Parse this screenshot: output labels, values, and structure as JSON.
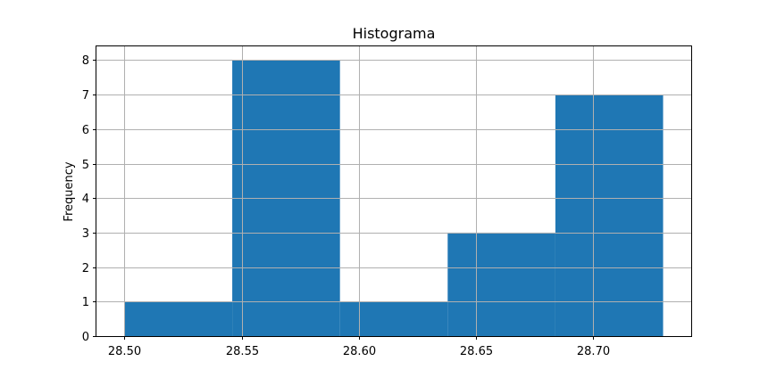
{
  "chart_data": {
    "type": "bar",
    "title": "Histograma",
    "xlabel": "",
    "ylabel": "Frequency",
    "bins": [
      {
        "x0": 28.5,
        "x1": 28.546,
        "count": 1
      },
      {
        "x0": 28.546,
        "x1": 28.592,
        "count": 8
      },
      {
        "x0": 28.592,
        "x1": 28.638,
        "count": 1
      },
      {
        "x0": 28.638,
        "x1": 28.684,
        "count": 3
      },
      {
        "x0": 28.684,
        "x1": 28.73,
        "count": 7
      }
    ],
    "xlim": [
      28.488,
      28.742
    ],
    "ylim": [
      0,
      8.4
    ],
    "xticks": [
      {
        "value": 28.5,
        "label": "28.50"
      },
      {
        "value": 28.55,
        "label": "28.55"
      },
      {
        "value": 28.6,
        "label": "28.60"
      },
      {
        "value": 28.65,
        "label": "28.65"
      },
      {
        "value": 28.7,
        "label": "28.70"
      }
    ],
    "yticks": [
      {
        "value": 0,
        "label": "0"
      },
      {
        "value": 1,
        "label": "1"
      },
      {
        "value": 2,
        "label": "2"
      },
      {
        "value": 3,
        "label": "3"
      },
      {
        "value": 4,
        "label": "4"
      },
      {
        "value": 5,
        "label": "5"
      },
      {
        "value": 6,
        "label": "6"
      },
      {
        "value": 7,
        "label": "7"
      },
      {
        "value": 8,
        "label": "8"
      }
    ],
    "grid": true,
    "bar_color": "#1f77b4",
    "grid_color": "#b0b0b0"
  }
}
